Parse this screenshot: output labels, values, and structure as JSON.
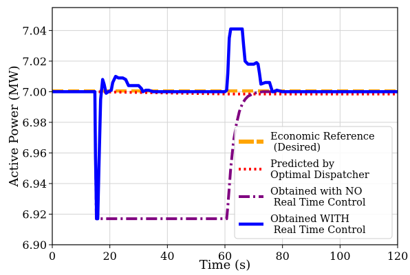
{
  "chart_data": {
    "type": "line",
    "title": "",
    "xlabel": "Time (s)",
    "ylabel": "Active Power (MW)",
    "xlim": [
      0,
      120
    ],
    "ylim": [
      6.9,
      7.055
    ],
    "xticks": [
      0,
      20,
      40,
      60,
      80,
      100,
      120
    ],
    "xtick_labels": [
      "0",
      "20",
      "40",
      "60",
      "80",
      "100",
      "120"
    ],
    "yticks": [
      6.9,
      6.92,
      6.94,
      6.96,
      6.98,
      7.0,
      7.02,
      7.04
    ],
    "ytick_labels": [
      "6.90",
      "6.92",
      "6.94",
      "6.96",
      "6.98",
      "7.00",
      "7.02",
      "7.04"
    ],
    "grid": true,
    "legend_position": "lower-right",
    "series": [
      {
        "name": "Economic Reference\n (Desired)",
        "color": "#ffa500",
        "style": "dashed",
        "legend_lines": [
          "Economic Reference",
          " (Desired)"
        ],
        "x": [
          0,
          120
        ],
        "y": [
          7.0005,
          7.0005
        ]
      },
      {
        "name": "Predicted by\nOptimal Dispatcher",
        "color": "#ff0000",
        "style": "dotted",
        "legend_lines": [
          "Predicted by",
          "Optimal Dispatcher"
        ],
        "x": [
          0,
          15,
          61,
          120
        ],
        "y": [
          7.0,
          7.0,
          6.9985,
          6.9985
        ]
      },
      {
        "name": "Obtained with NO\n Real Time Control",
        "color": "#800080",
        "style": "dashdot",
        "legend_lines": [
          "Obtained with NO",
          " Real Time Control"
        ],
        "x": [
          0,
          14.8,
          15.0,
          15.3,
          60.6,
          61.0,
          62.0,
          63.0,
          64.0,
          65.0,
          66.0,
          67.0,
          68.0,
          70.0,
          73.0,
          120
        ],
        "y": [
          7.0,
          7.0,
          6.96,
          6.917,
          6.917,
          6.925,
          6.95,
          6.968,
          6.979,
          6.987,
          6.992,
          6.995,
          6.997,
          6.999,
          7.0,
          7.0
        ]
      },
      {
        "name": "Obtained WITH\n Real Time Control",
        "color": "#0000ff",
        "style": "solid",
        "legend_lines": [
          "Obtained WITH",
          " Real Time Control"
        ],
        "x": [
          0,
          14.8,
          15.0,
          15.4,
          15.8,
          16.2,
          16.8,
          17.5,
          18.0,
          18.7,
          19.5,
          20.5,
          21.0,
          22.0,
          23.0,
          24.5,
          25.5,
          26.5,
          27.5,
          28.5,
          30.0,
          31.0,
          31.5,
          32.5,
          33.5,
          35.0,
          40.0,
          60.0,
          60.6,
          61.0,
          61.5,
          62.0,
          62.5,
          63.5,
          66.0,
          66.5,
          67.0,
          68.0,
          70.0,
          71.0,
          71.5,
          72.0,
          72.5,
          74.0,
          75.5,
          76.0,
          76.5,
          77.0,
          78.0,
          80.0,
          120
        ],
        "y": [
          7.0,
          7.0,
          6.96,
          6.917,
          6.917,
          6.95,
          6.995,
          7.008,
          7.005,
          6.999,
          7.0,
          7.001,
          7.006,
          7.01,
          7.009,
          7.009,
          7.008,
          7.004,
          7.004,
          7.004,
          7.004,
          7.002,
          7.0,
          7.001,
          7.001,
          7.0,
          7.0,
          7.0,
          7.001,
          7.012,
          7.035,
          7.041,
          7.041,
          7.041,
          7.041,
          7.03,
          7.02,
          7.018,
          7.018,
          7.019,
          7.018,
          7.012,
          7.005,
          7.006,
          7.006,
          7.003,
          7.0,
          7.0,
          7.001,
          7.0,
          7.0
        ]
      }
    ]
  }
}
